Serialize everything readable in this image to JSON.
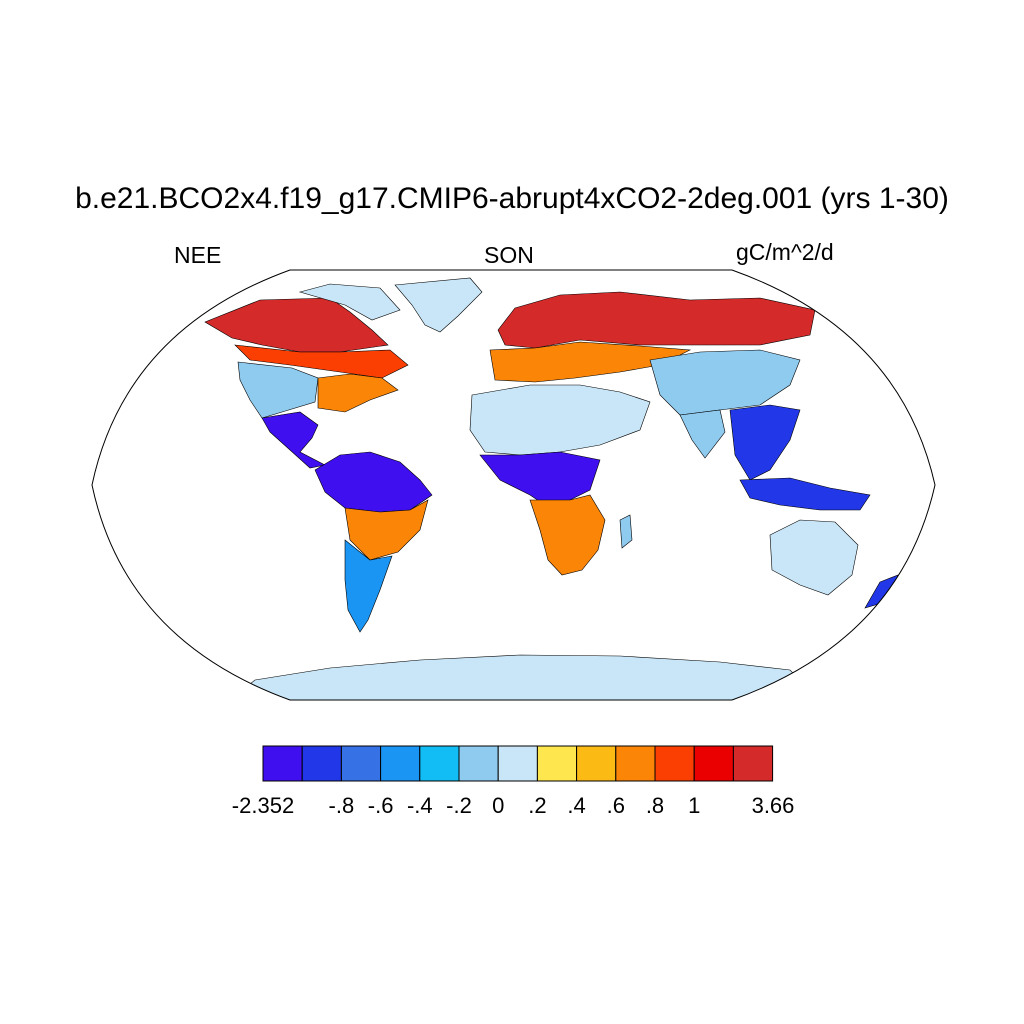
{
  "title": "b.e21.BCO2x4.f19_g17.CMIP6-abrupt4xCO2-2deg.001 (yrs 1-30)",
  "variable": "NEE",
  "season": "SON",
  "units": "gC/m^2/d",
  "colorbar": {
    "colors": [
      "#3f0ff0",
      "#2137e8",
      "#3671e6",
      "#1a95f4",
      "#12bdf5",
      "#8fcaef",
      "#c8e6f7",
      "#fde64e",
      "#fbbb14",
      "#fa8507",
      "#fb3f03",
      "#ea0000",
      "#d42a2a"
    ],
    "labels": [
      "-2.352",
      "-.8",
      "-.6",
      "-.4",
      "-.2",
      "0",
      ".2",
      ".4",
      ".6",
      ".8",
      "1",
      "3.66"
    ]
  },
  "map_regions": [
    {
      "name": "Alaska-Canada boreal",
      "color": "#d42a2a"
    },
    {
      "name": "Canada south boreal",
      "color": "#fb3f03"
    },
    {
      "name": "Eastern USA",
      "color": "#fa8507"
    },
    {
      "name": "Western USA",
      "color": "#8fcaef"
    },
    {
      "name": "Greenland",
      "color": "#c8e6f7"
    },
    {
      "name": "Amazon basin",
      "color": "#3f0ff0"
    },
    {
      "name": "Southern Brazil",
      "color": "#fa8507"
    },
    {
      "name": "Patagonia",
      "color": "#1a95f4"
    },
    {
      "name": "Northern Europe / Siberia",
      "color": "#d42a2a"
    },
    {
      "name": "Central Eurasia",
      "color": "#fa8507"
    },
    {
      "name": "Sahara / Middle East",
      "color": "#c8e6f7"
    },
    {
      "name": "Central Asia",
      "color": "#8fcaef"
    },
    {
      "name": "Central Africa",
      "color": "#3f0ff0"
    },
    {
      "name": "Southern Africa",
      "color": "#fa8507"
    },
    {
      "name": "Southeast Asia",
      "color": "#2137e8"
    },
    {
      "name": "Australia",
      "color": "#c8e6f7"
    },
    {
      "name": "Antarctica",
      "color": "#c8e6f7"
    }
  ]
}
